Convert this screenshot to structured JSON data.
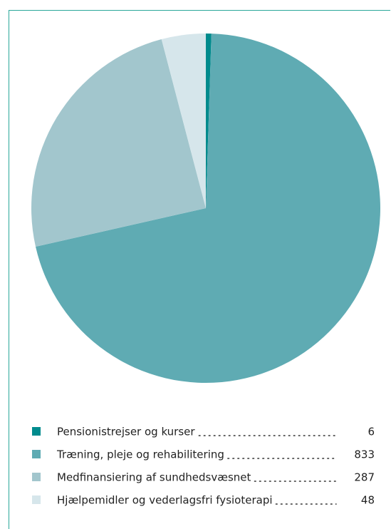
{
  "chart_data": {
    "type": "pie",
    "categories": [
      "Pensionistrejser og kurser",
      "Træning, pleje og rehabilitering",
      "Medfinansiering af sundhedsvæsnet",
      "Hjælpemidler og vederlagsfri fysioterapi"
    ],
    "values": [
      6,
      833,
      287,
      48
    ],
    "colors": [
      "#008b8d",
      "#5fabb3",
      "#a2c6cd",
      "#d6e6eb"
    ]
  }
}
